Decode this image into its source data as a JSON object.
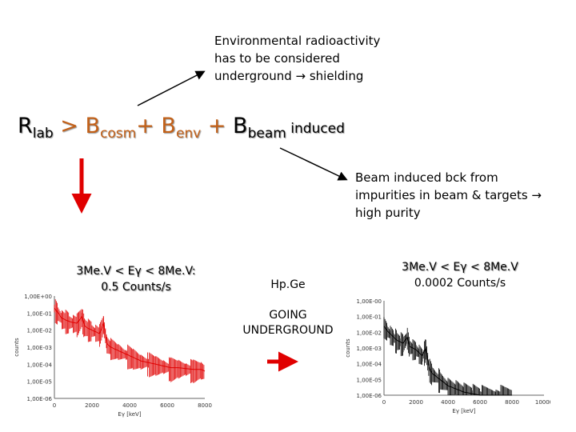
{
  "notes": {
    "environmental": "Environmental radioactivity\nhas to be considered\nunderground → shielding",
    "beam": "Beam induced bck from\nimpurities in beam & targets →\nhigh purity"
  },
  "equation": {
    "r": "R",
    "r_sub": "lab",
    "gt": " > ",
    "b1": "B",
    "b1_sub": "cosm",
    "plus1": "+ ",
    "b2": "B",
    "b2_sub": "env",
    "plus2": " + ",
    "b3": "B",
    "b3_sub": "beam",
    "b3_tail": " induced"
  },
  "labels": {
    "left_range": "3Me.V < Eγ < 8Me.V:",
    "left_rate": "0.5 Counts/s",
    "detector": "Hp.Ge",
    "going": "GOING\nUNDERGROUND",
    "right_range": "3Me.V < Eγ < 8Me.V",
    "right_rate": "0.0002 Counts/s"
  },
  "colors": {
    "red": "#e00000",
    "orange": "#c26018",
    "black": "#000000"
  },
  "chart_data": [
    {
      "type": "line",
      "title": "",
      "xlabel": "Eγ [keV]",
      "ylabel": "counts",
      "xticks": [
        "0",
        "2000",
        "4000",
        "6000",
        "8000"
      ],
      "yticks": [
        "1,00E+00",
        "1,00E-01",
        "1,00E-02",
        "1,00E-03",
        "1,00E-04",
        "1,00E-05",
        "1,00E-06"
      ],
      "xlim": [
        0,
        8000
      ],
      "ylim": [
        -6,
        0
      ],
      "log_y": true,
      "series": [
        {
          "color": "#e00000",
          "x": [
            0,
            200,
            400,
            600,
            800,
            1000,
            1200,
            1460,
            1600,
            1800,
            2000,
            2200,
            2400,
            2614,
            2800,
            3000,
            3400,
            3800,
            4200,
            4600,
            5000,
            5400,
            5800,
            6200,
            6600,
            7000,
            7400,
            7800,
            8000
          ],
          "y": [
            -0.7,
            -1.0,
            -1.3,
            -1.4,
            -1.5,
            -1.55,
            -1.6,
            -1.2,
            -1.75,
            -1.9,
            -2.0,
            -2.1,
            -2.2,
            -1.6,
            -2.8,
            -3.0,
            -3.2,
            -3.4,
            -3.6,
            -3.8,
            -3.9,
            -4.0,
            -4.1,
            -4.2,
            -4.2,
            -4.25,
            -4.3,
            -4.3,
            -4.4
          ]
        }
      ]
    },
    {
      "type": "line",
      "title": "",
      "xlabel": "Eγ [keV]",
      "ylabel": "counts",
      "xticks": [
        "0",
        "2000",
        "4000",
        "6000",
        "8000",
        "10000"
      ],
      "yticks": [
        "1,00E-00",
        "1,00E-01",
        "1,00E-02",
        "1,00E-03",
        "1,00E-04",
        "1,00E-05",
        "1,00E-06"
      ],
      "xlim": [
        0,
        10000
      ],
      "ylim": [
        -6,
        0
      ],
      "log_y": true,
      "series": [
        {
          "color": "#000000",
          "x": [
            0,
            200,
            400,
            600,
            800,
            1000,
            1200,
            1460,
            1600,
            1800,
            2000,
            2200,
            2400,
            2614,
            2800,
            3000,
            3500,
            4000,
            4500,
            5000,
            5500,
            6000,
            7000,
            8000
          ],
          "y": [
            -1.6,
            -1.9,
            -2.1,
            -2.3,
            -2.5,
            -2.6,
            -2.7,
            -2.3,
            -2.9,
            -3.0,
            -3.1,
            -3.3,
            -3.5,
            -3.0,
            -4.2,
            -4.6,
            -5.0,
            -5.4,
            -5.6,
            -5.8,
            -5.9,
            -6.0,
            -6.0,
            -6.0
          ]
        }
      ]
    }
  ]
}
